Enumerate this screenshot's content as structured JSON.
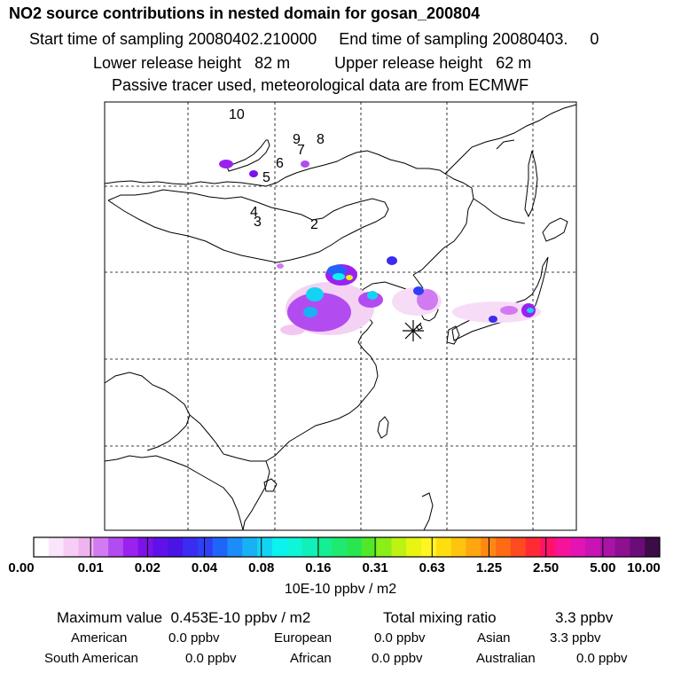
{
  "header": {
    "title": "NO2 source contributions in nested domain for gosan_200804",
    "line1": "Start time of sampling 20080402.210000     End time of sampling 20080403.     0",
    "line2": "Lower release height   82 m          Upper release height   62 m",
    "line3": "Passive tracer used, meteorological data are from ECMWF"
  },
  "map": {
    "trajectory_labels": [
      "10",
      "9",
      "7",
      "8",
      "6",
      "5",
      "4",
      "3",
      "2"
    ],
    "receptor_marker": "asterisk"
  },
  "colorbar": {
    "tick_labels": [
      "0.00",
      "0.01",
      "0.02",
      "0.04",
      "0.08",
      "0.16",
      "0.31",
      "0.63",
      "1.25",
      "2.50",
      "5.00",
      "10.00"
    ],
    "units": "10E-10 ppbv / m2",
    "colors": [
      "#ffffff",
      "#fae6fa",
      "#f5cdf5",
      "#efb4ef",
      "#d27bf0",
      "#b34cf0",
      "#9b21f0",
      "#7c12e8",
      "#6010e8",
      "#4a14e6",
      "#3a2cf0",
      "#2f3ff5",
      "#2065fa",
      "#1c8df8",
      "#18b2f4",
      "#12d4f2",
      "#0cf2ef",
      "#0ff5d8",
      "#10f0b8",
      "#16ee94",
      "#1eea70",
      "#28e650",
      "#52e82a",
      "#8aee18",
      "#bdf212",
      "#e8f510",
      "#fff520",
      "#ffde10",
      "#ffc410",
      "#ffa610",
      "#ff8812",
      "#ff6a14",
      "#ff4a22",
      "#ff2a34",
      "#ff1268",
      "#f6139a",
      "#e414b4",
      "#c814b4",
      "#aa14a6",
      "#8c1090",
      "#6c0c78",
      "#3c0c48"
    ]
  },
  "footer": {
    "max_label": "Maximum value  0.453E-10 ppbv / m2",
    "total_label": "Total mixing ratio",
    "total_value": "3.3 ppbv",
    "regions": [
      {
        "name": "American",
        "value": "0.0 ppbv"
      },
      {
        "name": "European",
        "value": "0.0 ppbv"
      },
      {
        "name": "Asian",
        "value": "3.3 ppbv"
      },
      {
        "name": "South American",
        "value": "0.0 ppbv"
      },
      {
        "name": "African",
        "value": "0.0 ppbv"
      },
      {
        "name": "Australian",
        "value": "0.0 ppbv"
      }
    ]
  }
}
